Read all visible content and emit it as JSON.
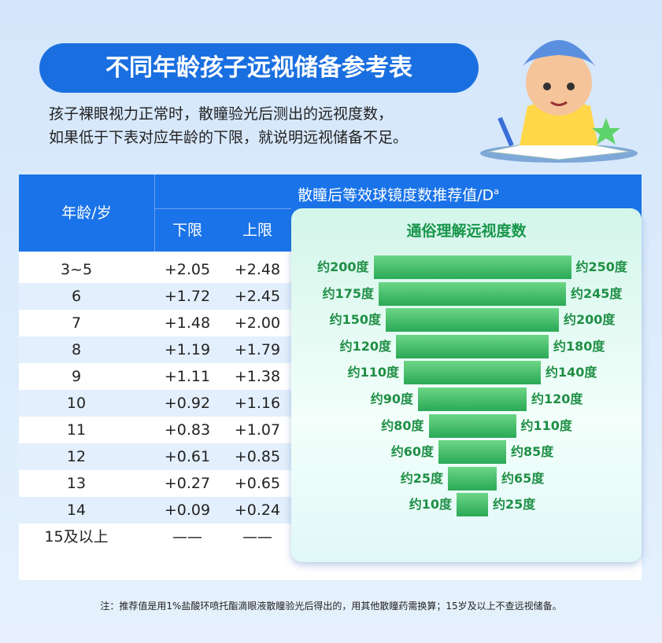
{
  "header": {
    "title": "不同年龄孩子远视储备参考表",
    "intro": [
      "孩子裸眼视力正常时，散瞳验光后测出的远视度数，",
      "如果低于下表对应年龄的下限，就说明远视储备不足。"
    ]
  },
  "table": {
    "age_header": "年龄/岁",
    "value_header": "散瞳后等效球镜度数推荐值/D",
    "value_header_sup": "a",
    "lower_header": "下限",
    "upper_header": "上限",
    "rows": [
      [
        "3~5",
        "+2.05",
        "+2.48"
      ],
      [
        "6",
        "+1.72",
        "+2.45"
      ],
      [
        "7",
        "+1.48",
        "+2.00"
      ],
      [
        "8",
        "+1.19",
        "+1.79"
      ],
      [
        "9",
        "+1.11",
        "+1.38"
      ],
      [
        "10",
        "+0.92",
        "+1.16"
      ],
      [
        "11",
        "+0.83",
        "+1.07"
      ],
      [
        "12",
        "+0.61",
        "+0.85"
      ],
      [
        "13",
        "+0.27",
        "+0.65"
      ],
      [
        "14",
        "+0.09",
        "+0.24"
      ],
      [
        "15及以上",
        "——",
        "——"
      ]
    ]
  },
  "panel": {
    "title": "通俗理解远视度数",
    "levels": [
      [
        "约200度",
        "约250度"
      ],
      [
        "约175度",
        "约245度"
      ],
      [
        "约150度",
        "约200度"
      ],
      [
        "约120度",
        "约180度"
      ],
      [
        "约110度",
        "约140度"
      ],
      [
        "约90度",
        "约120度"
      ],
      [
        "约80度",
        "约110度"
      ],
      [
        "约60度",
        "约85度"
      ],
      [
        "约25度",
        "约65度"
      ],
      [
        "约10度",
        "约25度"
      ]
    ]
  },
  "note": "注：推荐值是用1%盐酸环喷托酯滴眼液散瞳验光后得出的，用其他散瞳药需换算；15岁及以上不查远视储备。"
}
